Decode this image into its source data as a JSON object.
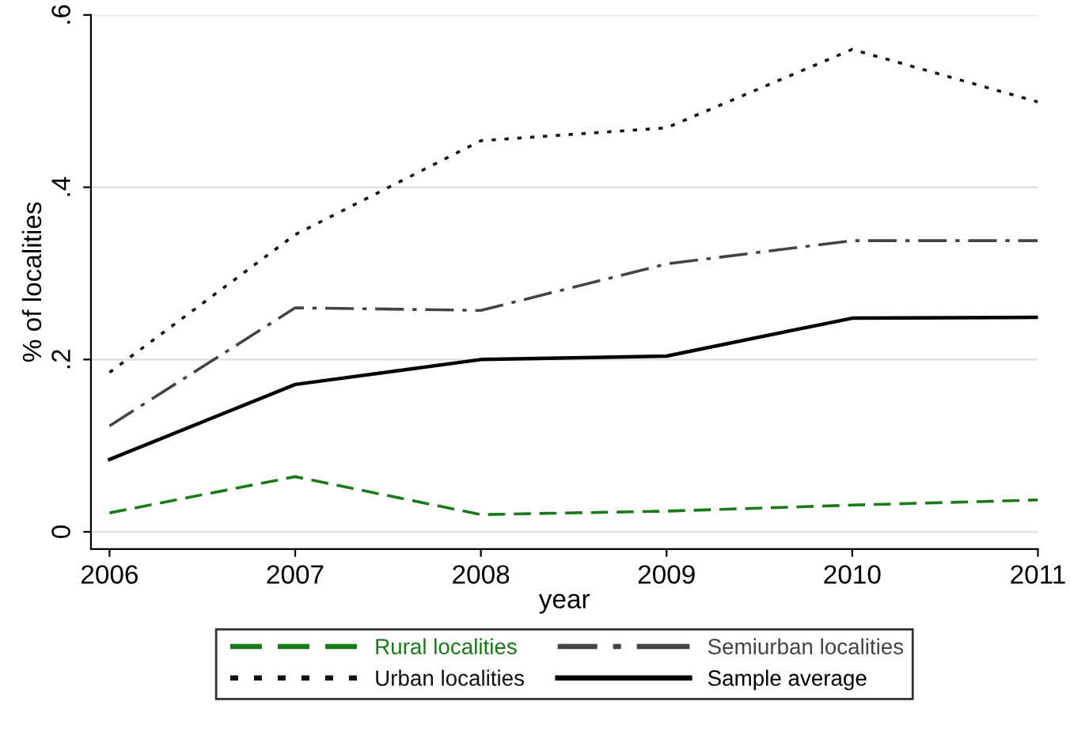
{
  "chart_data": {
    "type": "line",
    "xlabel": "year",
    "ylabel": "% of localities",
    "x": [
      2006,
      2007,
      2008,
      2009,
      2010,
      2011
    ],
    "xlim": [
      2005.9,
      2011
    ],
    "xticks": [
      2006,
      2007,
      2008,
      2009,
      2010,
      2011
    ],
    "ylim": [
      -0.02,
      0.6
    ],
    "yticks": [
      {
        "value": 0,
        "label": "0"
      },
      {
        "value": 0.2,
        "label": ".2"
      },
      {
        "value": 0.4,
        "label": ".4"
      },
      {
        "value": 0.6,
        "label": ".6"
      }
    ],
    "grid": "y",
    "legend": "bottom",
    "marker": "none",
    "series": [
      {
        "name": "Rural localities",
        "color": "#1a7a1a",
        "line_style": "dashed",
        "values": [
          0.022,
          0.064,
          0.02,
          0.024,
          0.031,
          0.037
        ]
      },
      {
        "name": "Semiurban localities",
        "color": "#444444",
        "line_style": "dashdot",
        "values": [
          0.123,
          0.26,
          0.257,
          0.311,
          0.338,
          0.338
        ]
      },
      {
        "name": "Urban localities",
        "color": "#111111",
        "line_style": "dotted",
        "values": [
          0.185,
          0.345,
          0.454,
          0.469,
          0.56,
          0.499
        ]
      },
      {
        "name": "Sample average",
        "color": "#000000",
        "line_style": "solid",
        "values": [
          0.084,
          0.171,
          0.2,
          0.204,
          0.248,
          0.249
        ]
      }
    ]
  }
}
